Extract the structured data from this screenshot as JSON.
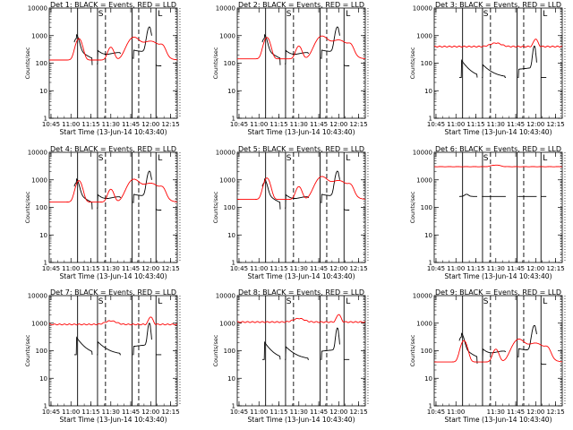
{
  "chart_data": [
    {
      "type": "line",
      "title": "Det 1: BLACK = Events, RED = LLD",
      "xlabel": "Start Time (13-Jun-14 10:43:40)",
      "ylabel": "Counts/sec",
      "yscale": "log",
      "ylim": [
        1,
        10000
      ],
      "yticks": [
        "1",
        "10",
        "100",
        "1000",
        "10000"
      ],
      "xlim": [
        "10:43:40",
        "12:20"
      ],
      "xticks": [
        "10:45",
        "11:00",
        "11:15",
        "11:30",
        "11:45",
        "12:00",
        "12:15"
      ],
      "markers": [
        "S",
        "L"
      ],
      "profile": "A",
      "series": [
        {
          "name": "BLACK",
          "color": "#000000",
          "role": "Events",
          "level": 1.0
        },
        {
          "name": "RED",
          "color": "#ff0000",
          "role": "LLD",
          "level": 1.0
        }
      ]
    },
    {
      "type": "line",
      "title": "Det 2: BLACK = Events, RED = LLD",
      "xlabel": "Start Time (13-Jun-14 10:43:40)",
      "ylabel": "Counts/sec",
      "yscale": "log",
      "ylim": [
        1,
        10000
      ],
      "yticks": [
        "1",
        "10",
        "100",
        "1000",
        "10000"
      ],
      "xlim": [
        "10:43:40",
        "12:20"
      ],
      "xticks": [
        "10:45",
        "11:00",
        "11:15",
        "11:30",
        "11:45",
        "12:00",
        "12:15"
      ],
      "markers": [
        "S",
        "L"
      ],
      "profile": "A",
      "series": [
        {
          "name": "BLACK",
          "color": "#000000",
          "role": "Events",
          "level": 1.0
        },
        {
          "name": "RED",
          "color": "#ff0000",
          "role": "LLD",
          "level": 1.1
        }
      ]
    },
    {
      "type": "line",
      "title": "Det 3: BLACK = Events, RED = LLD",
      "xlabel": "Start Time (13-Jun-14 10:43:40)",
      "ylabel": "Counts/sec",
      "yscale": "log",
      "ylim": [
        1,
        10000
      ],
      "yticks": [
        "1",
        "10",
        "100",
        "1000",
        "10000"
      ],
      "xlim": [
        "10:43:40",
        "12:20"
      ],
      "xticks": [
        "10:45",
        "11:00",
        "11:15",
        "11:30",
        "11:45",
        "12:00",
        "12:15"
      ],
      "markers": [
        "S",
        "L"
      ],
      "profile": "B",
      "series": [
        {
          "name": "BLACK",
          "color": "#000000",
          "role": "Events",
          "level": 0.5
        },
        {
          "name": "RED",
          "color": "#ff0000",
          "role": "LLD",
          "level": 400
        }
      ]
    },
    {
      "type": "line",
      "title": "Det 4: BLACK = Events, RED = LLD",
      "xlabel": "Start Time (13-Jun-14 10:43:40)",
      "ylabel": "Counts/sec",
      "yscale": "log",
      "ylim": [
        1,
        10000
      ],
      "yticks": [
        "1",
        "10",
        "100",
        "1000",
        "10000"
      ],
      "xlim": [
        "10:43:40",
        "12:20"
      ],
      "xticks": [
        "10:45",
        "11:00",
        "11:15",
        "11:30",
        "11:45",
        "12:00",
        "12:15"
      ],
      "markers": [
        "S",
        "L"
      ],
      "profile": "A",
      "series": [
        {
          "name": "BLACK",
          "color": "#000000",
          "role": "Events",
          "level": 1.0
        },
        {
          "name": "RED",
          "color": "#ff0000",
          "role": "LLD",
          "level": 1.2
        }
      ]
    },
    {
      "type": "line",
      "title": "Det 5: BLACK = Events, RED = LLD",
      "xlabel": "Start Time (13-Jun-14 10:43:40)",
      "ylabel": "Counts/sec",
      "yscale": "log",
      "ylim": [
        1,
        10000
      ],
      "yticks": [
        "1",
        "10",
        "100",
        "1000",
        "10000"
      ],
      "xlim": [
        "10:43:40",
        "12:20"
      ],
      "xticks": [
        "10:45",
        "11:00",
        "11:15",
        "11:30",
        "11:45",
        "12:00",
        "12:15"
      ],
      "markers": [
        "S",
        "L"
      ],
      "profile": "A",
      "series": [
        {
          "name": "BLACK",
          "color": "#000000",
          "role": "Events",
          "level": 1.0
        },
        {
          "name": "RED",
          "color": "#ff0000",
          "role": "LLD",
          "level": 1.5
        }
      ]
    },
    {
      "type": "line",
      "title": "Det 6: BLACK = Events, RED = LLD",
      "xlabel": "Start Time (13-Jun-14 10:43:40)",
      "ylabel": "Counts/sec",
      "yscale": "log",
      "ylim": [
        1,
        10000
      ],
      "yticks": [
        "1",
        "10",
        "100",
        "1000",
        "10000"
      ],
      "xlim": [
        "10:43:40",
        "12:20"
      ],
      "xticks": [
        "10:45",
        "11:00",
        "11:15",
        "11:30",
        "11:45",
        "12:00",
        "12:15"
      ],
      "markers": [
        "S",
        "L"
      ],
      "profile": "C",
      "series": [
        {
          "name": "BLACK",
          "color": "#000000",
          "role": "Events",
          "level": 250
        },
        {
          "name": "RED",
          "color": "#ff0000",
          "role": "LLD",
          "level": 3000
        }
      ]
    },
    {
      "type": "line",
      "title": "Det 7: BLACK = Events, RED = LLD",
      "xlabel": "Start Time (13-Jun-14 10:43:40)",
      "ylabel": "Counts/sec",
      "yscale": "log",
      "ylim": [
        1,
        10000
      ],
      "yticks": [
        "1",
        "10",
        "100",
        "1000",
        "10000"
      ],
      "xlim": [
        "10:43:40",
        "12:20"
      ],
      "xticks": [
        "10:45",
        "11:00",
        "11:15",
        "11:30",
        "11:45",
        "12:00",
        "12:15"
      ],
      "markers": [
        "S",
        "L"
      ],
      "profile": "B",
      "series": [
        {
          "name": "BLACK",
          "color": "#000000",
          "role": "Events",
          "level": 1.2
        },
        {
          "name": "RED",
          "color": "#ff0000",
          "role": "LLD",
          "level": 900
        }
      ]
    },
    {
      "type": "line",
      "title": "Det 8: BLACK = Events, RED = LLD",
      "xlabel": "Start Time (13-Jun-14 10:43:40)",
      "ylabel": "Counts/sec",
      "yscale": "log",
      "ylim": [
        1,
        10000
      ],
      "yticks": [
        "1",
        "10",
        "100",
        "1000",
        "10000"
      ],
      "xlim": [
        "10:43:40",
        "12:20"
      ],
      "xticks": [
        "10:45",
        "11:00",
        "11:15",
        "11:30",
        "11:45",
        "12:00",
        "12:15"
      ],
      "markers": [
        "S",
        "L"
      ],
      "profile": "B",
      "series": [
        {
          "name": "BLACK",
          "color": "#000000",
          "role": "Events",
          "level": 0.8
        },
        {
          "name": "RED",
          "color": "#ff0000",
          "role": "LLD",
          "level": 1100
        }
      ]
    },
    {
      "type": "line",
      "title": "Det 9: BLACK = Events, RED = LLD",
      "xlabel": "Start Time (13-Jun-14 10:43:40)",
      "ylabel": "Counts/sec",
      "yscale": "log",
      "ylim": [
        1,
        10000
      ],
      "yticks": [
        "1",
        "10",
        "100",
        "1000",
        "10000"
      ],
      "xlim": [
        "10:43:40",
        "12:20"
      ],
      "xticks": [
        "10:45",
        "11:00",
        "11:30",
        "11:45",
        "12:00",
        "12:15"
      ],
      "markers": [
        "S",
        "L"
      ],
      "profile": "A",
      "series": [
        {
          "name": "BLACK",
          "color": "#000000",
          "role": "Events",
          "level": 0.4
        },
        {
          "name": "RED",
          "color": "#ff0000",
          "role": "LLD",
          "level": 0.3
        }
      ]
    }
  ]
}
